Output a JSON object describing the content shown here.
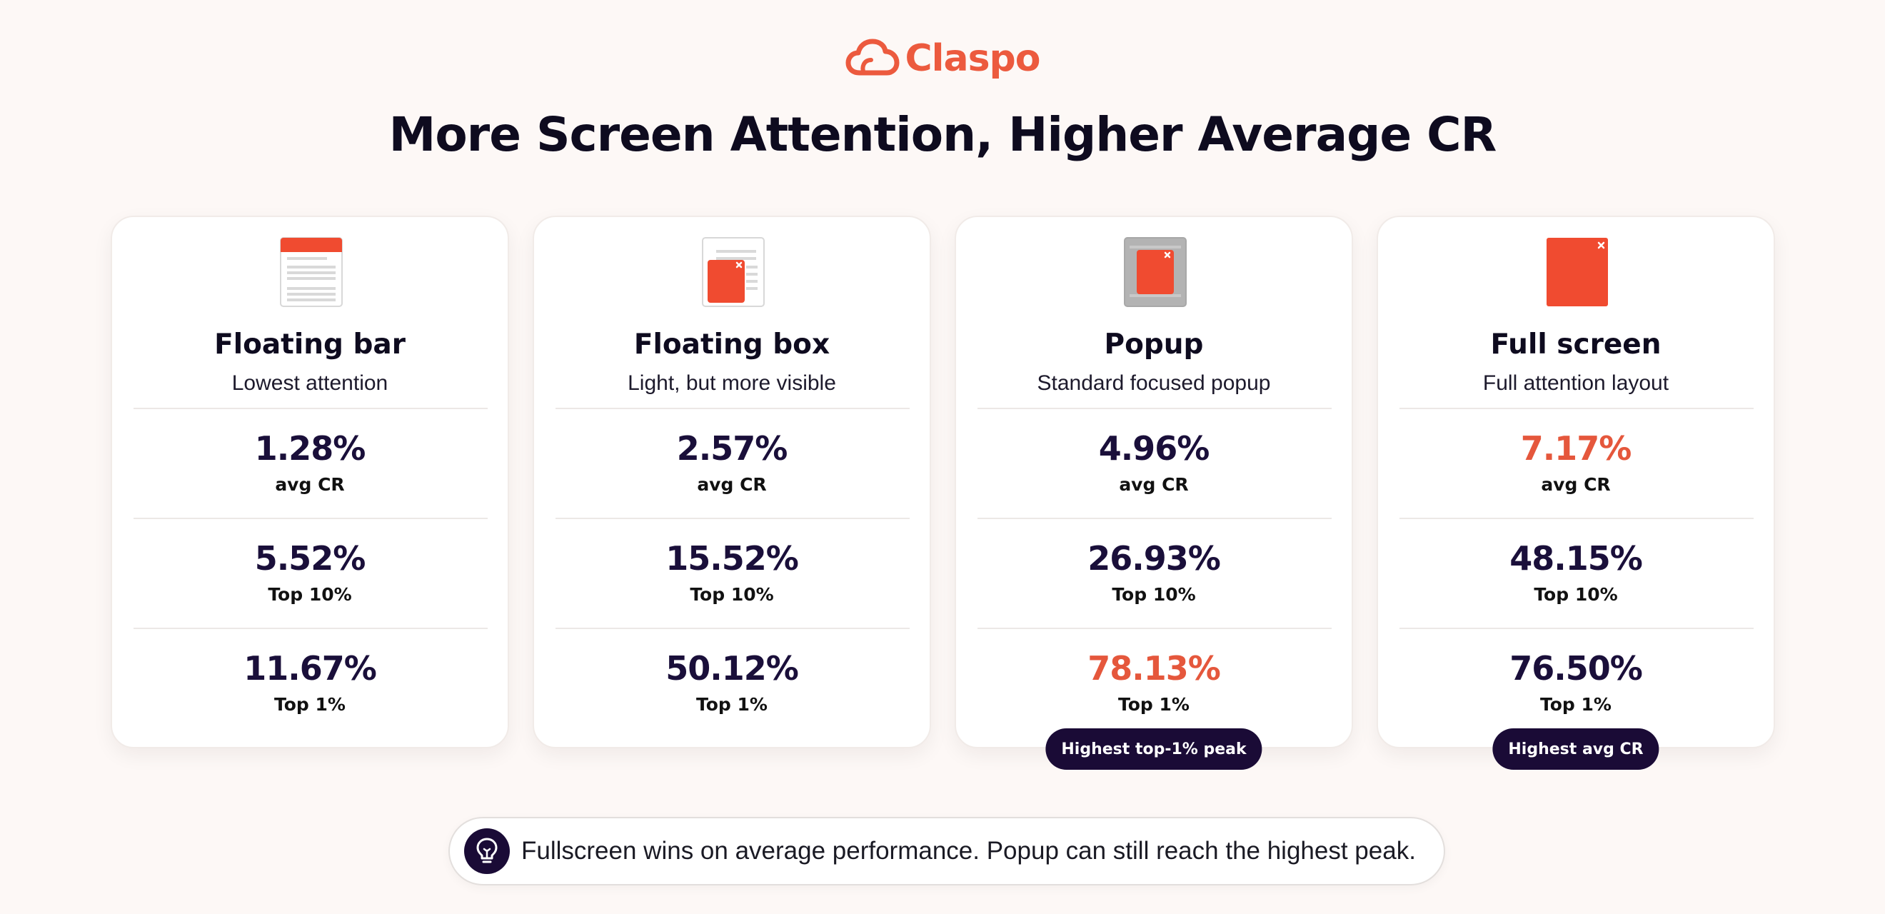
{
  "brand": {
    "name": "Claspo",
    "icon": "cloud-outline-icon",
    "color": "#ec5a3e"
  },
  "title": "More Screen Attention, Higher Average CR",
  "colors": {
    "accent": "#e5573c",
    "dark": "#1a0b36",
    "background": "#fdf8f6"
  },
  "cards": [
    {
      "icon": "floating-bar-thumbnail-icon",
      "title": "Floating bar",
      "subtitle": "Lowest attention",
      "metrics": [
        {
          "value": "1.28%",
          "label": "avg CR"
        },
        {
          "value": "5.52%",
          "label": "Top 10%"
        },
        {
          "value": "11.67%",
          "label": "Top 1%"
        }
      ]
    },
    {
      "icon": "floating-box-thumbnail-icon",
      "title": "Floating box",
      "subtitle": "Light, but more visible",
      "metrics": [
        {
          "value": "2.57%",
          "label": "avg CR"
        },
        {
          "value": "15.52%",
          "label": "Top 10%"
        },
        {
          "value": "50.12%",
          "label": "Top 1%"
        }
      ]
    },
    {
      "icon": "popup-thumbnail-icon",
      "title": "Popup",
      "subtitle": "Standard focused popup",
      "metrics": [
        {
          "value": "4.96%",
          "label": "avg CR"
        },
        {
          "value": "26.93%",
          "label": "Top 10%"
        },
        {
          "value": "78.13%",
          "label": "Top 1%",
          "highlight": true
        }
      ],
      "badge": "Highest top-1% peak"
    },
    {
      "icon": "full-screen-thumbnail-icon",
      "title": "Full screen",
      "subtitle": "Full attention layout",
      "metrics": [
        {
          "value": "7.17%",
          "label": "avg CR",
          "highlight": true
        },
        {
          "value": "48.15%",
          "label": "Top 10%"
        },
        {
          "value": "76.50%",
          "label": "Top 1%"
        }
      ],
      "badge": "Highest avg CR"
    }
  ],
  "note": {
    "icon": "lightbulb-icon",
    "text": "Fullscreen wins on average performance. Popup can still reach the highest peak."
  }
}
